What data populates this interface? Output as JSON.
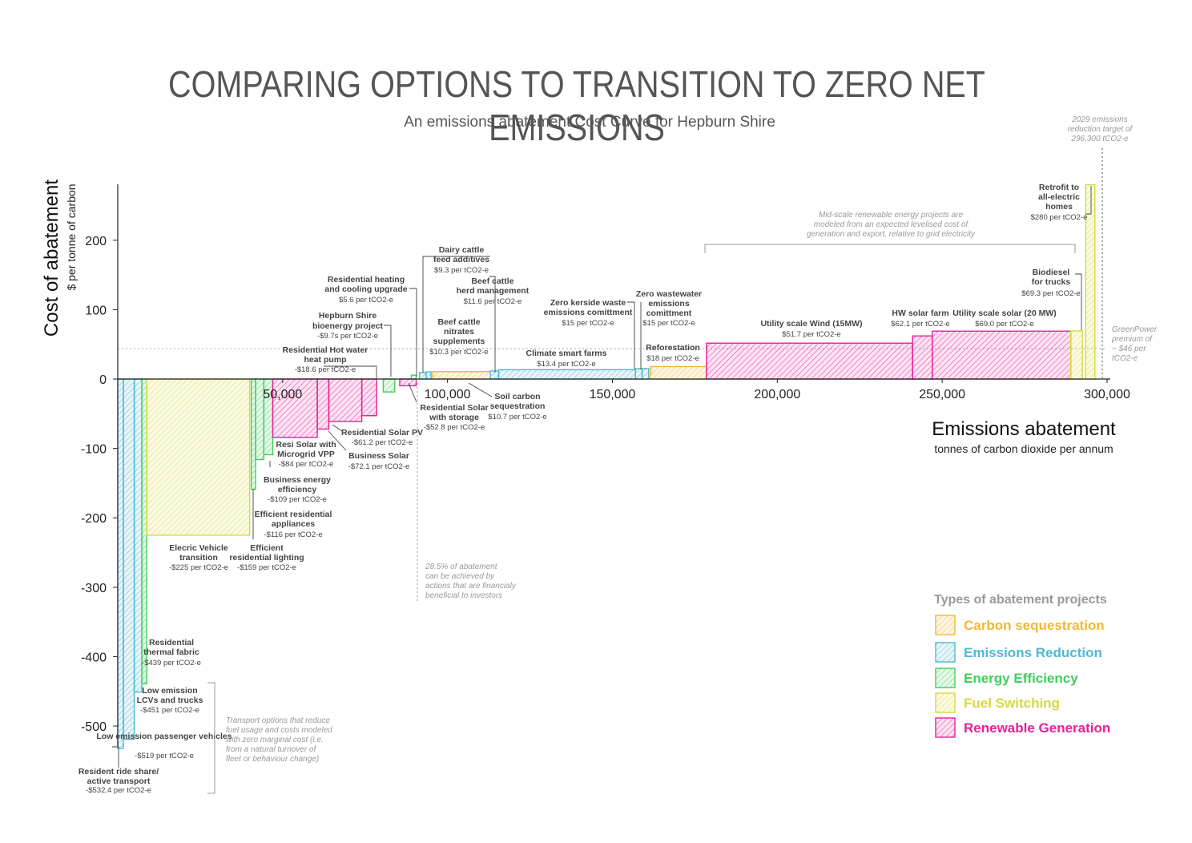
{
  "title": "COMPARING OPTIONS TO TRANSITION TO ZERO NET EMISSIONS",
  "subtitle": "An emissions abatement Cost Curve for Hepburn Shire",
  "colors": {
    "Carbon sequestration": "#f2b830",
    "Emissions Reduction": "#4fb8d4",
    "Energy Efficiency": "#3fd05a",
    "Fuel Switching": "#d8d83a",
    "Renewable Generation": "#e8209a"
  },
  "legend": {
    "title": "Types of abatement projects",
    "items": [
      "Carbon sequestration",
      "Emissions Reduction",
      "Energy Efficiency",
      "Fuel Switching",
      "Renewable Generation"
    ]
  },
  "annotations": {
    "target": "2029 emissions reduction target of 296,300 tCO2-e",
    "greenpower": "GreenPower premium of ~ $46 per tCO2-e",
    "midscale": "Mid-scale renewable energy projects are modeled from an expected levelised cost of generation and export, relative to grid electricity",
    "beneficial": "28.5% of abatement can be achieved by actions that are financialy beneficial to investors",
    "transport": "Transport options that reduce fuel usage and costs modeled with zero marginal cost (i.e. from a natural turnover of fleet or behaviour change)"
  },
  "chart_data": {
    "type": "bar",
    "title": "COMPARING OPTIONS TO TRANSITION TO ZERO NET EMISSIONS",
    "xlabel": "Emissions abatement",
    "xlabel_sub": "tonnes of carbon dioxide per annum",
    "ylabel": "Cost of abatement",
    "ylabel_sub": "$ per tonne of carbon",
    "xlim": [
      0,
      300000
    ],
    "ylim": [
      -540,
      280
    ],
    "xticks": [
      "50,000",
      "100,000",
      "150,000",
      "200,000",
      "250,000",
      "300,000"
    ],
    "yticks": [
      "200",
      "100",
      "0",
      "-100",
      "-200",
      "-300",
      "-400",
      "-500"
    ],
    "greenpower_line": 46,
    "target_x": 296300,
    "bars": [
      {
        "name": "Resident ride share/ active transport",
        "value": "-$532.4 per tCO2-e",
        "cost": -532.4,
        "x0": 0,
        "x1": 1700,
        "type": "Emissions Reduction"
      },
      {
        "name": "Low emission passenger vehicles",
        "value": "-$519 per tCO2-e",
        "cost": -519,
        "x0": 1700,
        "x1": 5000,
        "type": "Emissions Reduction"
      },
      {
        "name": "Low emission LCVs and trucks",
        "value": "-$451 per tCO2-e",
        "cost": -451,
        "x0": 5000,
        "x1": 7300,
        "type": "Emissions Reduction"
      },
      {
        "name": "Residential thermal fabric",
        "value": "-$439 per tCO2-e",
        "cost": -439,
        "x0": 7300,
        "x1": 8800,
        "type": "Energy Efficiency"
      },
      {
        "name": "Elecric Vehicle transition",
        "value": "-$225 per tCO2-e",
        "cost": -225,
        "x0": 8800,
        "x1": 40000,
        "type": "Fuel Switching"
      },
      {
        "name": "Efficient residential lighting",
        "value": "-$159 per tCO2-e",
        "cost": -159,
        "x0": 40500,
        "x1": 41800,
        "type": "Energy Efficiency"
      },
      {
        "name": "Efficient residential appliances",
        "value": "-$116 per tCO2-e",
        "cost": -116,
        "x0": 41800,
        "x1": 44300,
        "type": "Energy Efficiency"
      },
      {
        "name": "Business energy efficiency",
        "value": "-$109 per tCO2-e",
        "cost": -109,
        "x0": 44300,
        "x1": 47000,
        "type": "Energy Efficiency"
      },
      {
        "name": "Resi Solar with Microgrid VPP",
        "value": "-$84 per tCO2-e",
        "cost": -84,
        "x0": 47000,
        "x1": 60500,
        "type": "Renewable Generation"
      },
      {
        "name": "Business Solar",
        "value": "-$72.1 per tCO2-e",
        "cost": -72.1,
        "x0": 60500,
        "x1": 64000,
        "type": "Renewable Generation"
      },
      {
        "name": "Residential Solar PV",
        "value": "-$61.2 per tCO2-e",
        "cost": -61.2,
        "x0": 64000,
        "x1": 74000,
        "type": "Renewable Generation"
      },
      {
        "name": "Residential Hot water heat pump",
        "value": "-$18.6 per tCO2-e",
        "cost": -18.6,
        "x0": 80500,
        "x1": 84000,
        "type": "Energy Efficiency"
      },
      {
        "name": "Hepburn Shire bioenergy project",
        "value": "-$9.7s per tCO2-e",
        "cost": -9.7,
        "x0": 85500,
        "x1": 90500,
        "type": "Renewable Generation"
      },
      {
        "name": "Residential Solar with storage",
        "value": "-$52.8 per tCO2-e",
        "cost": -52.8,
        "x0": 74000,
        "x1": 78500,
        "type": "Renewable Generation"
      },
      {
        "name": "Residential heating and cooling upgrade",
        "value": "$5.6 per tCO2-e",
        "cost": 5.6,
        "x0": 89000,
        "x1": 90500,
        "type": "Energy Efficiency"
      },
      {
        "name": "Dairy cattle feed additives",
        "value": "$9.3 per tCO2-e",
        "cost": 9.3,
        "x0": 91500,
        "x1": 93500,
        "type": "Emissions Reduction"
      },
      {
        "name": "Beef cattle nitrates supplements",
        "value": "$10.3 per tCO2-e",
        "cost": 10.3,
        "x0": 93500,
        "x1": 95000,
        "type": "Emissions Reduction"
      },
      {
        "name": "Soil carbon sequestration",
        "value": "$10.7 per tCO2-e",
        "cost": 10.7,
        "x0": 95500,
        "x1": 113000,
        "type": "Carbon sequestration"
      },
      {
        "name": "Beef cattle herd management",
        "value": "$11.6 per tCO2-e",
        "cost": 11.6,
        "x0": 113000,
        "x1": 115500,
        "type": "Emissions Reduction"
      },
      {
        "name": "Climate smart farms",
        "value": "$13.4 per tCO2-e",
        "cost": 13.4,
        "x0": 115500,
        "x1": 157000,
        "type": "Emissions Reduction"
      },
      {
        "name": "Zero kerside waste emissions comittment",
        "value": "$15 per tCO2-e",
        "cost": 15,
        "x0": 157000,
        "x1": 159000,
        "type": "Emissions Reduction"
      },
      {
        "name": "Zero wastewater emissions comittment",
        "value": "$15 per tCO2-e",
        "cost": 15,
        "x0": 159000,
        "x1": 161000,
        "type": "Emissions Reduction"
      },
      {
        "name": "Reforestation",
        "value": "$18 per tCO2-e",
        "cost": 18,
        "x0": 161500,
        "x1": 178500,
        "type": "Carbon sequestration"
      },
      {
        "name": "Utility scale Wind (15MW)",
        "value": "$51.7 per tCO2-e",
        "cost": 51.7,
        "x0": 178500,
        "x1": 241000,
        "type": "Renewable Generation"
      },
      {
        "name": "HW solar farm",
        "value": "$62.1 per tCO2-e",
        "cost": 62.1,
        "x0": 241000,
        "x1": 247000,
        "type": "Renewable Generation"
      },
      {
        "name": "Utility scale solar (20 MW)",
        "value": "$69.0 per tCO2-e",
        "cost": 69,
        "x0": 247000,
        "x1": 289000,
        "type": "Renewable Generation"
      },
      {
        "name": "Biodiesel for trucks",
        "value": "$69.3 per tCO2-e",
        "cost": 69.3,
        "x0": 289000,
        "x1": 292500,
        "type": "Fuel Switching"
      },
      {
        "name": "Retrofit to all-electric homes",
        "value": "$280 per tCO2-e",
        "cost": 280,
        "x0": 293500,
        "x1": 296300,
        "type": "Fuel Switching"
      }
    ]
  }
}
